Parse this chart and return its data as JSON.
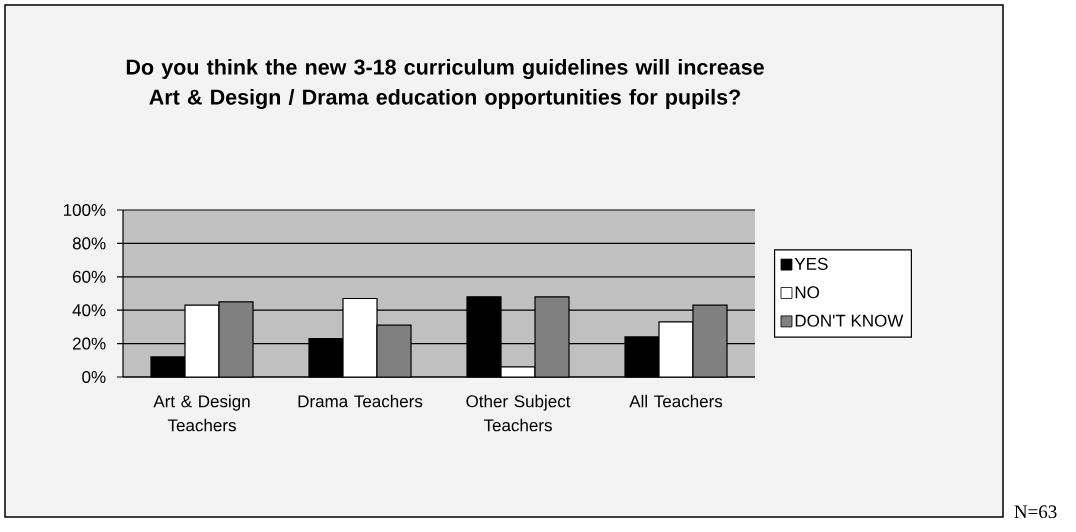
{
  "chart_data": {
    "type": "bar",
    "title": "Do you think the new 3-18 curriculum guidelines will increase Art & Design / Drama education opportunities for pupils?",
    "categories": [
      "Art & Design Teachers",
      "Drama Teachers",
      "Other Subject Teachers",
      "All Teachers"
    ],
    "series": [
      {
        "name": "YES",
        "color": "#000000",
        "values": [
          12,
          23,
          48,
          24
        ]
      },
      {
        "name": "NO",
        "color": "#ffffff",
        "values": [
          43,
          47,
          6,
          33
        ]
      },
      {
        "name": "DON'T KNOW",
        "color": "#808080",
        "values": [
          45,
          31,
          48,
          43
        ]
      }
    ],
    "ylim": [
      0,
      100
    ],
    "yticks": [
      {
        "value": 0,
        "label": "0%"
      },
      {
        "value": 20,
        "label": "20%"
      },
      {
        "value": 40,
        "label": "40%"
      },
      {
        "value": 60,
        "label": "60%"
      },
      {
        "value": 80,
        "label": "80%"
      },
      {
        "value": 100,
        "label": "100%"
      }
    ],
    "grid": "y",
    "legend": "right",
    "annotations": [
      "N=63"
    ]
  }
}
